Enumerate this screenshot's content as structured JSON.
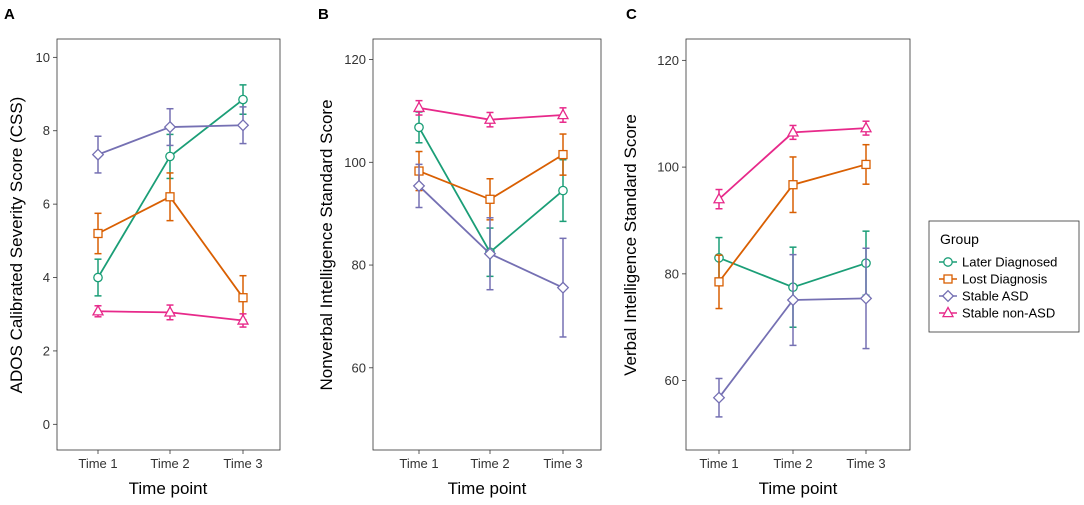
{
  "colors": {
    "Later Diagnosed": "#1b9e77",
    "Lost Diagnosis": "#d95f02",
    "Stable ASD": "#7570b3",
    "Stable non-ASD": "#e7298a"
  },
  "markers": {
    "Later Diagnosed": "circle",
    "Lost Diagnosis": "square",
    "Stable ASD": "diamond",
    "Stable non-ASD": "triangle"
  },
  "legend": {
    "title": "Group",
    "items": [
      "Later Diagnosed",
      "Lost Diagnosis",
      "Stable ASD",
      "Stable non-ASD"
    ]
  },
  "chart_data": [
    {
      "type": "line",
      "panel": "A",
      "title": "",
      "xlabel": "Time point",
      "ylabel": "ADOS Calibrated Severity Score  (CSS)",
      "categories": [
        "Time 1",
        "Time 2",
        "Time 3"
      ],
      "ylim": [
        -0.7,
        10.5
      ],
      "yticks": [
        0,
        2,
        4,
        6,
        8,
        10
      ],
      "series": [
        {
          "name": "Later Diagnosed",
          "values": [
            4.0,
            7.3,
            8.85
          ],
          "lower": [
            3.5,
            6.7,
            8.45
          ],
          "upper": [
            4.5,
            7.9,
            9.25
          ]
        },
        {
          "name": "Lost Diagnosis",
          "values": [
            5.2,
            6.2,
            3.45
          ],
          "lower": [
            4.65,
            5.55,
            2.85
          ],
          "upper": [
            5.75,
            6.85,
            4.05
          ]
        },
        {
          "name": "Stable ASD",
          "values": [
            7.35,
            8.1,
            8.15
          ],
          "lower": [
            6.85,
            7.6,
            7.65
          ],
          "upper": [
            7.85,
            8.6,
            8.65
          ]
        },
        {
          "name": "Stable non-ASD",
          "values": [
            3.08,
            3.05,
            2.83
          ],
          "lower": [
            2.93,
            2.85,
            2.65
          ],
          "upper": [
            3.23,
            3.25,
            3.01
          ]
        }
      ]
    },
    {
      "type": "line",
      "panel": "B",
      "title": "",
      "xlabel": "Time point",
      "ylabel": "Nonverbal Intelligence Standard Score",
      "categories": [
        "Time 1",
        "Time 2",
        "Time 3"
      ],
      "ylim": [
        44,
        124
      ],
      "yticks": [
        60,
        80,
        100,
        120
      ],
      "series": [
        {
          "name": "Later Diagnosed",
          "values": [
            106.8,
            82.5,
            94.5
          ],
          "lower": [
            103.8,
            77.8,
            88.5
          ],
          "upper": [
            109.8,
            87.2,
            100.5
          ]
        },
        {
          "name": "Lost Diagnosis",
          "values": [
            98.3,
            92.8,
            101.5
          ],
          "lower": [
            94.5,
            88.8,
            97.5
          ],
          "upper": [
            102.1,
            96.8,
            105.5
          ]
        },
        {
          "name": "Stable ASD",
          "values": [
            95.4,
            82.2,
            75.6
          ],
          "lower": [
            91.2,
            75.2,
            66.0
          ],
          "upper": [
            99.6,
            89.2,
            85.2
          ]
        },
        {
          "name": "Stable non-ASD",
          "values": [
            110.6,
            108.3,
            109.2
          ],
          "lower": [
            109.2,
            106.9,
            107.8
          ],
          "upper": [
            112.0,
            109.7,
            110.6
          ]
        }
      ]
    },
    {
      "type": "line",
      "panel": "C",
      "title": "",
      "xlabel": "Time point",
      "ylabel": "Verbal Intelligence Standard Score",
      "categories": [
        "Time 1",
        "Time 2",
        "Time 3"
      ],
      "ylim": [
        47,
        124
      ],
      "yticks": [
        60,
        80,
        100,
        120
      ],
      "series": [
        {
          "name": "Later Diagnosed",
          "values": [
            83.0,
            77.5,
            82.0
          ],
          "lower": [
            79.2,
            70.0,
            76.0
          ],
          "upper": [
            86.8,
            85.0,
            88.0
          ]
        },
        {
          "name": "Lost Diagnosis",
          "values": [
            78.5,
            96.7,
            100.5
          ],
          "lower": [
            73.5,
            91.5,
            96.8
          ],
          "upper": [
            83.5,
            101.9,
            104.2
          ]
        },
        {
          "name": "Stable ASD",
          "values": [
            56.8,
            75.1,
            75.4
          ],
          "lower": [
            53.2,
            66.6,
            66.0
          ],
          "upper": [
            60.4,
            83.6,
            84.8
          ]
        },
        {
          "name": "Stable non-ASD",
          "values": [
            94.0,
            106.5,
            107.3
          ],
          "lower": [
            92.2,
            105.2,
            106.0
          ],
          "upper": [
            95.8,
            107.8,
            108.6
          ]
        }
      ]
    }
  ]
}
